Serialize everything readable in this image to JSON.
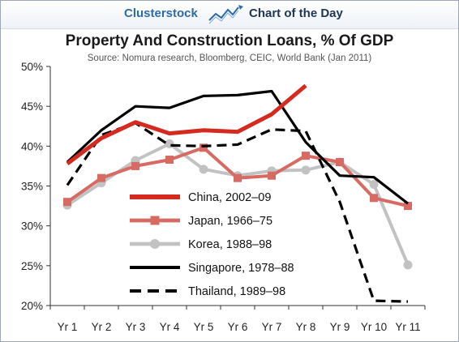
{
  "header": {
    "brand": "Clusterstock",
    "tagline": "Chart of the Day",
    "logo_icon": "line-chart-icon"
  },
  "chart_data": {
    "type": "line",
    "title": "Property And Construction Loans, % Of GDP",
    "subtitle": "Source: Nomura research, Bloomberg, CEIC, World Bank (Jan 2011)",
    "xlabel": "",
    "ylabel": "",
    "categories": [
      "Yr 1",
      "Yr 2",
      "Yr 3",
      "Yr 4",
      "Yr 5",
      "Yr 6",
      "Yr 7",
      "Yr 8",
      "Yr 9",
      "Yr 10",
      "Yr 11"
    ],
    "ylim": [
      20,
      50
    ],
    "yticks": [
      20,
      25,
      30,
      35,
      40,
      45,
      50
    ],
    "ytick_labels": [
      "20%",
      "25%",
      "30%",
      "35%",
      "40%",
      "45%",
      "50%"
    ],
    "grid": false,
    "legend_position": "lower-center",
    "series": [
      {
        "name": "China, 2002–09",
        "color": "#d42a1f",
        "style": "solid-thick",
        "marker": "none",
        "values": [
          37.8,
          41.0,
          43.0,
          41.6,
          42.0,
          41.8,
          44.0,
          47.6,
          null,
          null,
          null
        ]
      },
      {
        "name": "Japan, 1966–75",
        "color": "#d86a64",
        "style": "solid",
        "marker": "square",
        "values": [
          33.0,
          36.0,
          37.5,
          38.3,
          39.8,
          36.0,
          36.3,
          38.8,
          38.0,
          33.5,
          32.5
        ]
      },
      {
        "name": "Korea, 1988–98",
        "color": "#c2c2c2",
        "style": "solid",
        "marker": "circle",
        "values": [
          32.6,
          35.4,
          38.2,
          40.3,
          37.1,
          36.3,
          36.9,
          37.0,
          38.0,
          35.2,
          25.1
        ]
      },
      {
        "name": "Singapore, 1978–88",
        "color": "#000000",
        "style": "solid",
        "marker": "none",
        "values": [
          38.0,
          42.0,
          45.0,
          44.8,
          46.3,
          46.4,
          46.9,
          40.5,
          36.3,
          36.1,
          32.8
        ]
      },
      {
        "name": "Thailand, 1989–98",
        "color": "#000000",
        "style": "dashed",
        "marker": "none",
        "values": [
          35.1,
          41.4,
          42.9,
          40.1,
          40.0,
          40.2,
          42.1,
          41.9,
          33.0,
          20.6,
          20.5
        ]
      }
    ]
  }
}
